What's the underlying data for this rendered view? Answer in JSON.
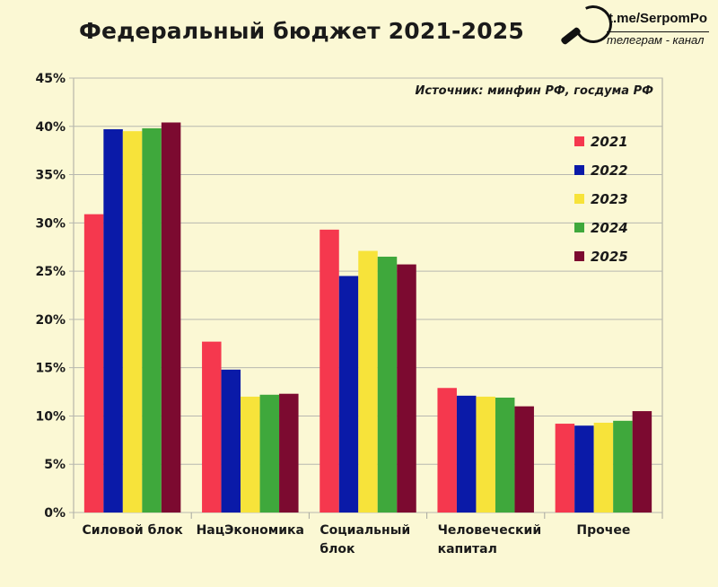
{
  "title": "Федеральный бюджет 2021-2025",
  "brand": {
    "url": "t.me/SerpomPo",
    "subtitle": "телеграм - канал"
  },
  "chart_data": {
    "type": "bar",
    "title": "Федеральный бюджет 2021-2025",
    "source": "Источник: минфин РФ, госдума РФ",
    "categories": [
      [
        "Силовой блок"
      ],
      [
        "НацЭкономика"
      ],
      [
        "Социальный",
        "блок"
      ],
      [
        "Человеческий",
        "капитал"
      ],
      [
        "Прочее"
      ]
    ],
    "ylim": [
      0,
      45
    ],
    "yticks": [
      "0%",
      "5%",
      "10%",
      "15%",
      "20%",
      "25%",
      "30%",
      "35%",
      "40%",
      "45%"
    ],
    "grid": true,
    "legend_position": "right",
    "series": [
      {
        "name": "2021",
        "color": "#f5384e",
        "values": [
          30.9,
          17.7,
          29.3,
          12.9,
          9.2
        ]
      },
      {
        "name": "2022",
        "color": "#0a1aa8",
        "values": [
          39.7,
          14.8,
          24.5,
          12.1,
          9.0
        ]
      },
      {
        "name": "2023",
        "color": "#f7e33a",
        "values": [
          39.5,
          12.0,
          27.1,
          12.0,
          9.3
        ]
      },
      {
        "name": "2024",
        "color": "#3fa83c",
        "values": [
          39.8,
          12.2,
          26.5,
          11.9,
          9.5
        ]
      },
      {
        "name": "2025",
        "color": "#7c0a30",
        "values": [
          40.4,
          12.3,
          25.7,
          11.0,
          10.5
        ]
      }
    ]
  }
}
